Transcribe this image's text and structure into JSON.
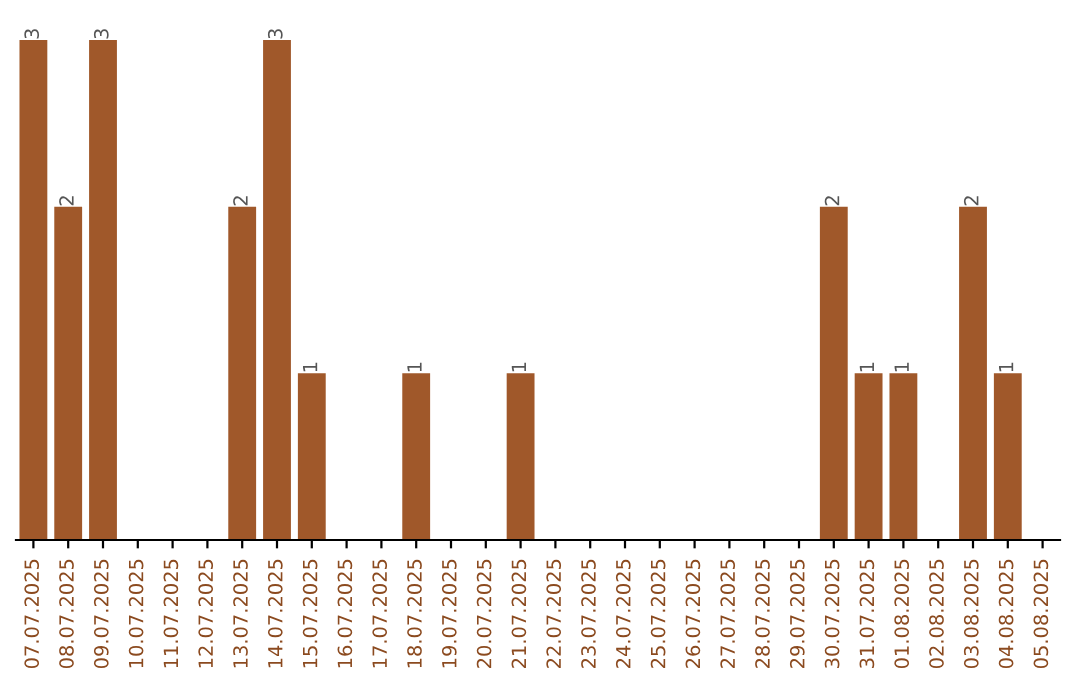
{
  "chart_data": {
    "type": "bar",
    "categories": [
      "07.07.2025",
      "08.07.2025",
      "09.07.2025",
      "10.07.2025",
      "11.07.2025",
      "12.07.2025",
      "13.07.2025",
      "14.07.2025",
      "15.07.2025",
      "16.07.2025",
      "17.07.2025",
      "18.07.2025",
      "19.07.2025",
      "20.07.2025",
      "21.07.2025",
      "22.07.2025",
      "23.07.2025",
      "24.07.2025",
      "25.07.2025",
      "26.07.2025",
      "27.07.2025",
      "28.07.2025",
      "29.07.2025",
      "30.07.2025",
      "31.07.2025",
      "01.08.2025",
      "02.08.2025",
      "03.08.2025",
      "04.08.2025",
      "05.08.2025"
    ],
    "values": [
      3,
      2,
      3,
      0,
      0,
      0,
      2,
      3,
      1,
      0,
      0,
      1,
      0,
      0,
      1,
      0,
      0,
      0,
      0,
      0,
      0,
      0,
      0,
      2,
      1,
      1,
      0,
      2,
      1,
      0
    ],
    "value_labels": [
      "3",
      "2",
      "3",
      null,
      null,
      null,
      "2",
      "3",
      "1",
      null,
      null,
      "1",
      null,
      null,
      "1",
      null,
      null,
      null,
      null,
      null,
      null,
      null,
      null,
      "2",
      "1",
      "1",
      null,
      "2",
      "1",
      null
    ],
    "color": "#a0582a",
    "tick_labels": "x",
    "grid": false,
    "legend": false
  }
}
